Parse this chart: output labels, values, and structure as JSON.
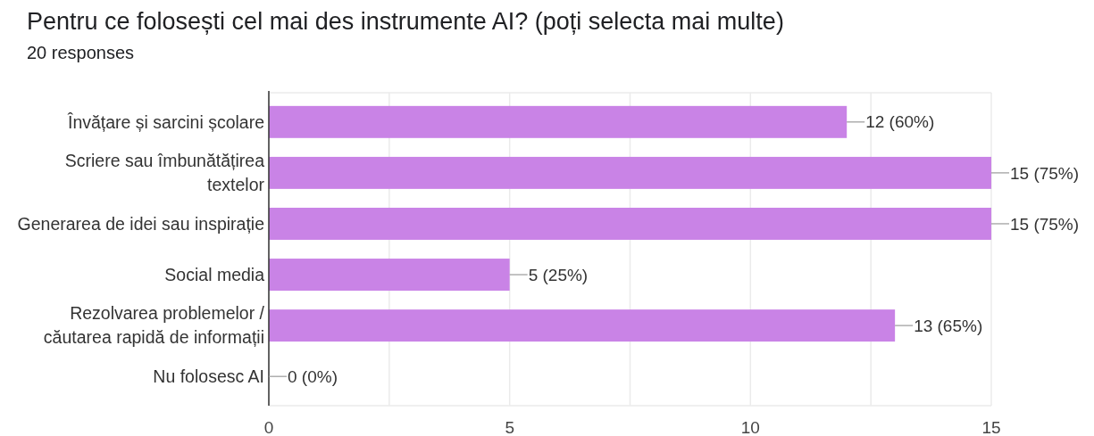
{
  "chart_data": {
    "type": "bar",
    "orientation": "horizontal",
    "title": "Pentru ce folosești cel mai des instrumente AI? (poți selecta mai multe)",
    "subtitle": "20 responses",
    "categories": [
      "Învățare și sarcini școlare",
      "Scriere sau îmbunătățirea textelor",
      "Generarea de idei sau inspirație",
      "Social media",
      "Rezolvarea problemelor / căutarea rapidă de informații",
      "Nu folosesc AI"
    ],
    "values": [
      12,
      15,
      15,
      5,
      13,
      0
    ],
    "value_labels": [
      "12 (60%)",
      "15 (75%)",
      "15 (75%)",
      "5 (25%)",
      "13 (65%)",
      "0 (0%)"
    ],
    "color": "#c983e6",
    "xlim": [
      0,
      15
    ],
    "xticks": [
      0,
      {
        "value": 2.5,
        "label": null
      },
      5,
      {
        "value": 7.5,
        "label": null
      },
      10,
      {
        "value": 12.5,
        "label": null
      },
      15
    ],
    "grid": "x"
  }
}
